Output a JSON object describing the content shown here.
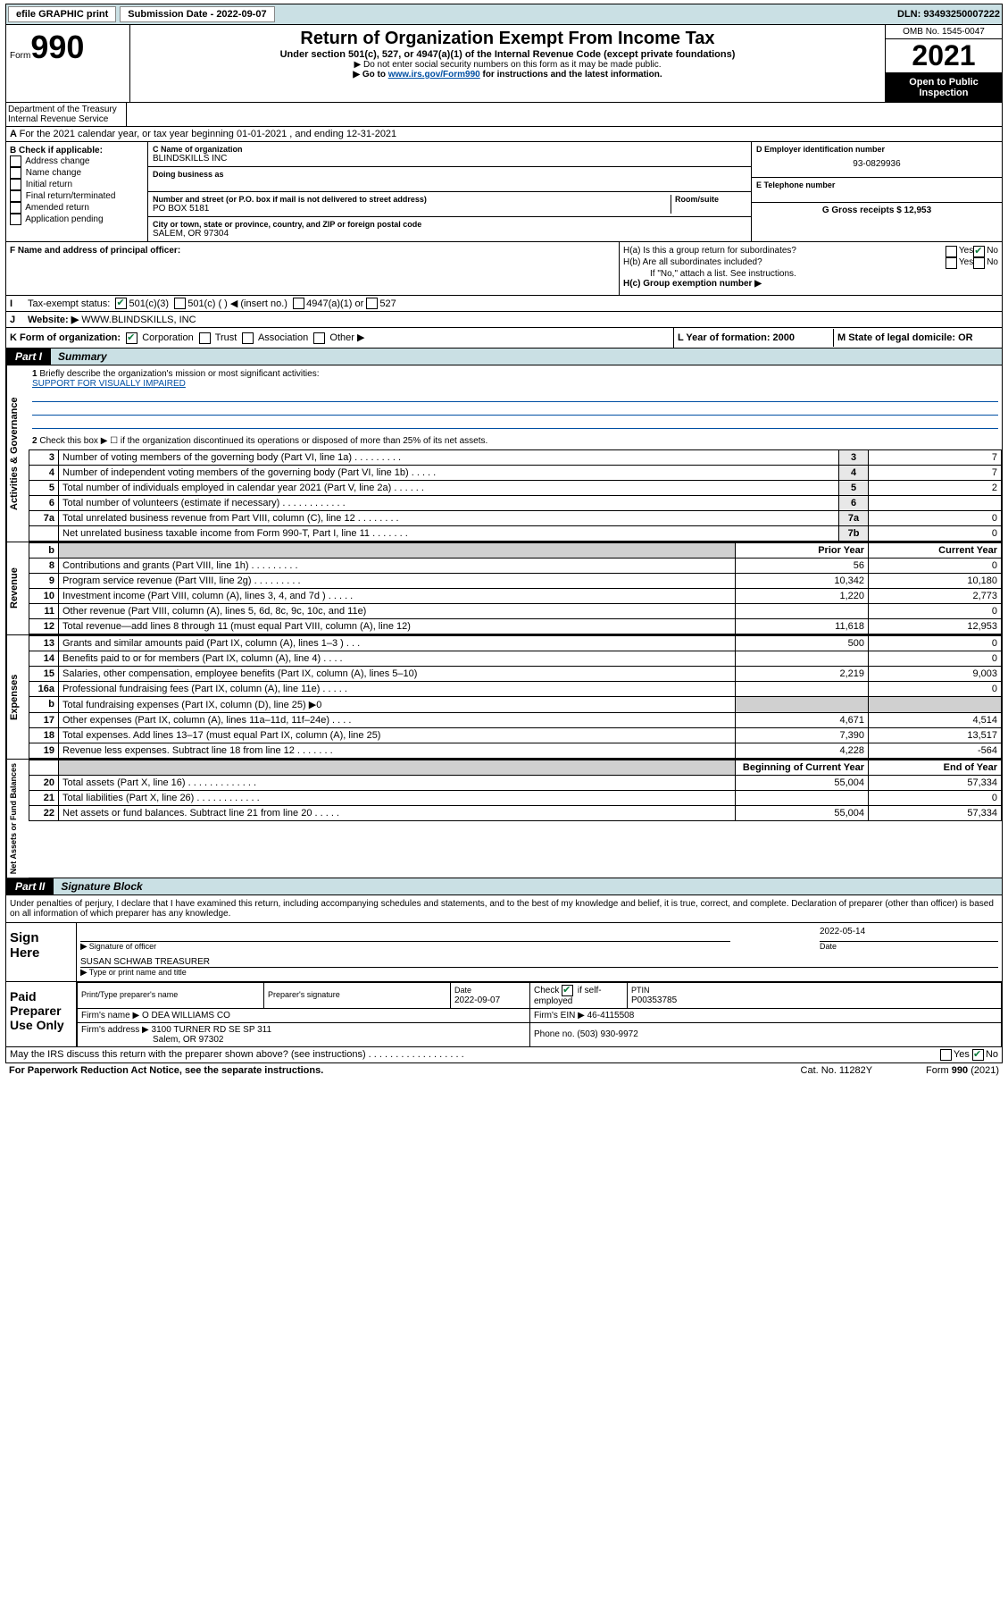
{
  "topbar": {
    "efile": "efile GRAPHIC print",
    "subdate_label": "Submission Date - 2022-09-07",
    "dln": "DLN: 93493250007222"
  },
  "header": {
    "form_label": "Form",
    "form_num": "990",
    "title": "Return of Organization Exempt From Income Tax",
    "subtitle": "Under section 501(c), 527, or 4947(a)(1) of the Internal Revenue Code (except private foundations)",
    "note1": "▶ Do not enter social security numbers on this form as it may be made public.",
    "note2_pre": "▶ Go to ",
    "note2_link": "www.irs.gov/Form990",
    "note2_post": " for instructions and the latest information.",
    "dept": "Department of the Treasury\nInternal Revenue Service",
    "omb": "OMB No. 1545-0047",
    "year": "2021",
    "open": "Open to Public Inspection"
  },
  "A": {
    "text": "For the 2021 calendar year, or tax year beginning 01-01-2021   , and ending 12-31-2021"
  },
  "B": {
    "label": "B Check if applicable:",
    "opts": [
      "Address change",
      "Name change",
      "Initial return",
      "Final return/terminated",
      "Amended return",
      "Application pending"
    ]
  },
  "C": {
    "name_label": "C Name of organization",
    "name": "BLINDSKILLS INC",
    "dba_label": "Doing business as",
    "addr_label": "Number and street (or P.O. box if mail is not delivered to street address)",
    "room_label": "Room/suite",
    "addr": "PO BOX 5181",
    "city_label": "City or town, state or province, country, and ZIP or foreign postal code",
    "city": "SALEM, OR  97304"
  },
  "D": {
    "label": "D Employer identification number",
    "val": "93-0829936"
  },
  "E": {
    "label": "E Telephone number",
    "val": ""
  },
  "G": {
    "label": "G Gross receipts $ 12,953"
  },
  "F": {
    "label": "F  Name and address of principal officer:"
  },
  "H": {
    "a": "H(a)  Is this a group return for subordinates?",
    "b": "H(b)  Are all subordinates included?",
    "b_note": "If \"No,\" attach a list. See instructions.",
    "c": "H(c)  Group exemption number ▶",
    "yes": "Yes",
    "no": "No"
  },
  "I": {
    "label": "Tax-exempt status:",
    "501c3": "501(c)(3)",
    "501c": "501(c) (  ) ◀ (insert no.)",
    "4947": "4947(a)(1) or",
    "527": "527"
  },
  "J": {
    "label": "Website: ▶",
    "val": "WWW.BLINDSKILLS, INC"
  },
  "K": {
    "label": "K Form of organization:",
    "corp": "Corporation",
    "trust": "Trust",
    "assoc": "Association",
    "other": "Other ▶"
  },
  "L": {
    "label": "L Year of formation: 2000"
  },
  "M": {
    "label": "M State of legal domicile: OR"
  },
  "part1": {
    "header": "Part I",
    "title": "Summary",
    "l1": "Briefly describe the organization's mission or most significant activities:",
    "l1_val": "SUPPORT FOR VISUALLY IMPAIRED",
    "l2": "Check this box ▶ ☐  if the organization discontinued its operations or disposed of more than 25% of its net assets.",
    "gov_label": "Activities & Governance",
    "rev_label": "Revenue",
    "exp_label": "Expenses",
    "net_label": "Net Assets or Fund Balances",
    "lines_gov": [
      {
        "n": "3",
        "d": "Number of voting members of the governing body (Part VI, line 1a)   .    .    .    .    .    .    .    .    .",
        "box": "3",
        "v": "7"
      },
      {
        "n": "4",
        "d": "Number of independent voting members of the governing body (Part VI, line 1b)   .    .    .    .    .",
        "box": "4",
        "v": "7"
      },
      {
        "n": "5",
        "d": "Total number of individuals employed in calendar year 2021 (Part V, line 2a)   .    .    .    .    .    .",
        "box": "5",
        "v": "2"
      },
      {
        "n": "6",
        "d": "Total number of volunteers (estimate if necessary)   .    .    .    .    .    .    .    .    .    .    .    .",
        "box": "6",
        "v": ""
      },
      {
        "n": "7a",
        "d": "Total unrelated business revenue from Part VIII, column (C), line 12   .    .    .    .    .    .    .    .",
        "box": "7a",
        "v": "0"
      },
      {
        "n": "",
        "d": "Net unrelated business taxable income from Form 990-T, Part I, line 11   .    .    .    .    .    .    .",
        "box": "7b",
        "v": "0"
      }
    ],
    "col_prior": "Prior Year",
    "col_current": "Current Year",
    "lines_rev": [
      {
        "n": "8",
        "d": "Contributions and grants (Part VIII, line 1h)   .    .    .    .    .    .    .    .    .",
        "p": "56",
        "c": "0"
      },
      {
        "n": "9",
        "d": "Program service revenue (Part VIII, line 2g)   .    .    .    .    .    .    .    .    .",
        "p": "10,342",
        "c": "10,180"
      },
      {
        "n": "10",
        "d": "Investment income (Part VIII, column (A), lines 3, 4, and 7d )   .    .    .    .    .",
        "p": "1,220",
        "c": "2,773"
      },
      {
        "n": "11",
        "d": "Other revenue (Part VIII, column (A), lines 5, 6d, 8c, 9c, 10c, and 11e)",
        "p": "",
        "c": "0"
      },
      {
        "n": "12",
        "d": "Total revenue—add lines 8 through 11 (must equal Part VIII, column (A), line 12)",
        "p": "11,618",
        "c": "12,953"
      }
    ],
    "lines_exp": [
      {
        "n": "13",
        "d": "Grants and similar amounts paid (Part IX, column (A), lines 1–3 )   .    .    .",
        "p": "500",
        "c": "0"
      },
      {
        "n": "14",
        "d": "Benefits paid to or for members (Part IX, column (A), line 4)   .    .    .    .",
        "p": "",
        "c": "0"
      },
      {
        "n": "15",
        "d": "Salaries, other compensation, employee benefits (Part IX, column (A), lines 5–10)",
        "p": "2,219",
        "c": "9,003"
      },
      {
        "n": "16a",
        "d": "Professional fundraising fees (Part IX, column (A), line 11e)   .    .    .    .    .",
        "p": "",
        "c": "0"
      },
      {
        "n": "b",
        "d": "Total fundraising expenses (Part IX, column (D), line 25) ▶0",
        "p": "GREY",
        "c": "GREY"
      },
      {
        "n": "17",
        "d": "Other expenses (Part IX, column (A), lines 11a–11d, 11f–24e)   .    .    .    .",
        "p": "4,671",
        "c": "4,514"
      },
      {
        "n": "18",
        "d": "Total expenses. Add lines 13–17 (must equal Part IX, column (A), line 25)",
        "p": "7,390",
        "c": "13,517"
      },
      {
        "n": "19",
        "d": "Revenue less expenses. Subtract line 18 from line 12   .    .    .    .    .    .    .",
        "p": "4,228",
        "c": "-564"
      }
    ],
    "col_begin": "Beginning of Current Year",
    "col_end": "End of Year",
    "lines_net": [
      {
        "n": "20",
        "d": "Total assets (Part X, line 16)   .    .    .    .    .    .    .    .    .    .    .    .    .",
        "p": "55,004",
        "c": "57,334"
      },
      {
        "n": "21",
        "d": "Total liabilities (Part X, line 26)   .    .    .    .    .    .    .    .    .    .    .    .",
        "p": "",
        "c": "0"
      },
      {
        "n": "22",
        "d": "Net assets or fund balances. Subtract line 21 from line 20   .    .    .    .    .",
        "p": "55,004",
        "c": "57,334"
      }
    ]
  },
  "part2": {
    "header": "Part II",
    "title": "Signature Block",
    "decl": "Under penalties of perjury, I declare that I have examined this return, including accompanying schedules and statements, and to the best of my knowledge and belief, it is true, correct, and complete. Declaration of preparer (other than officer) is based on all information of which preparer has any knowledge.",
    "sign_here": "Sign Here",
    "sig_officer": "Signature of officer",
    "sig_date": "2022-05-14",
    "date_label": "Date",
    "officer_name": "SUSAN SCHWAB  TREASURER",
    "type_name": "Type or print name and title",
    "paid": "Paid Preparer Use Only",
    "prep_name_label": "Print/Type preparer's name",
    "prep_sig_label": "Preparer's signature",
    "prep_date_label": "Date",
    "prep_date": "2022-09-07",
    "check_if": "Check ☑ if self-employed",
    "ptin_label": "PTIN",
    "ptin": "P00353785",
    "firm_name_label": "Firm's name    ▶",
    "firm_name": "O DEA WILLIAMS CO",
    "firm_ein_label": "Firm's EIN ▶",
    "firm_ein": "46-4115508",
    "firm_addr_label": "Firm's address ▶",
    "firm_addr": "3100 TURNER RD SE SP 311",
    "firm_city": "Salem, OR  97302",
    "phone_label": "Phone no.",
    "phone": "(503) 930-9972",
    "may_irs": "May the IRS discuss this return with the preparer shown above? (see instructions)   .    .    .    .    .    .    .    .    .    .    .    .    .    .    .    .    .    .",
    "yes": "Yes",
    "no": "No"
  },
  "footer": {
    "pra": "For Paperwork Reduction Act Notice, see the separate instructions.",
    "cat": "Cat. No. 11282Y",
    "form": "Form 990 (2021)"
  }
}
